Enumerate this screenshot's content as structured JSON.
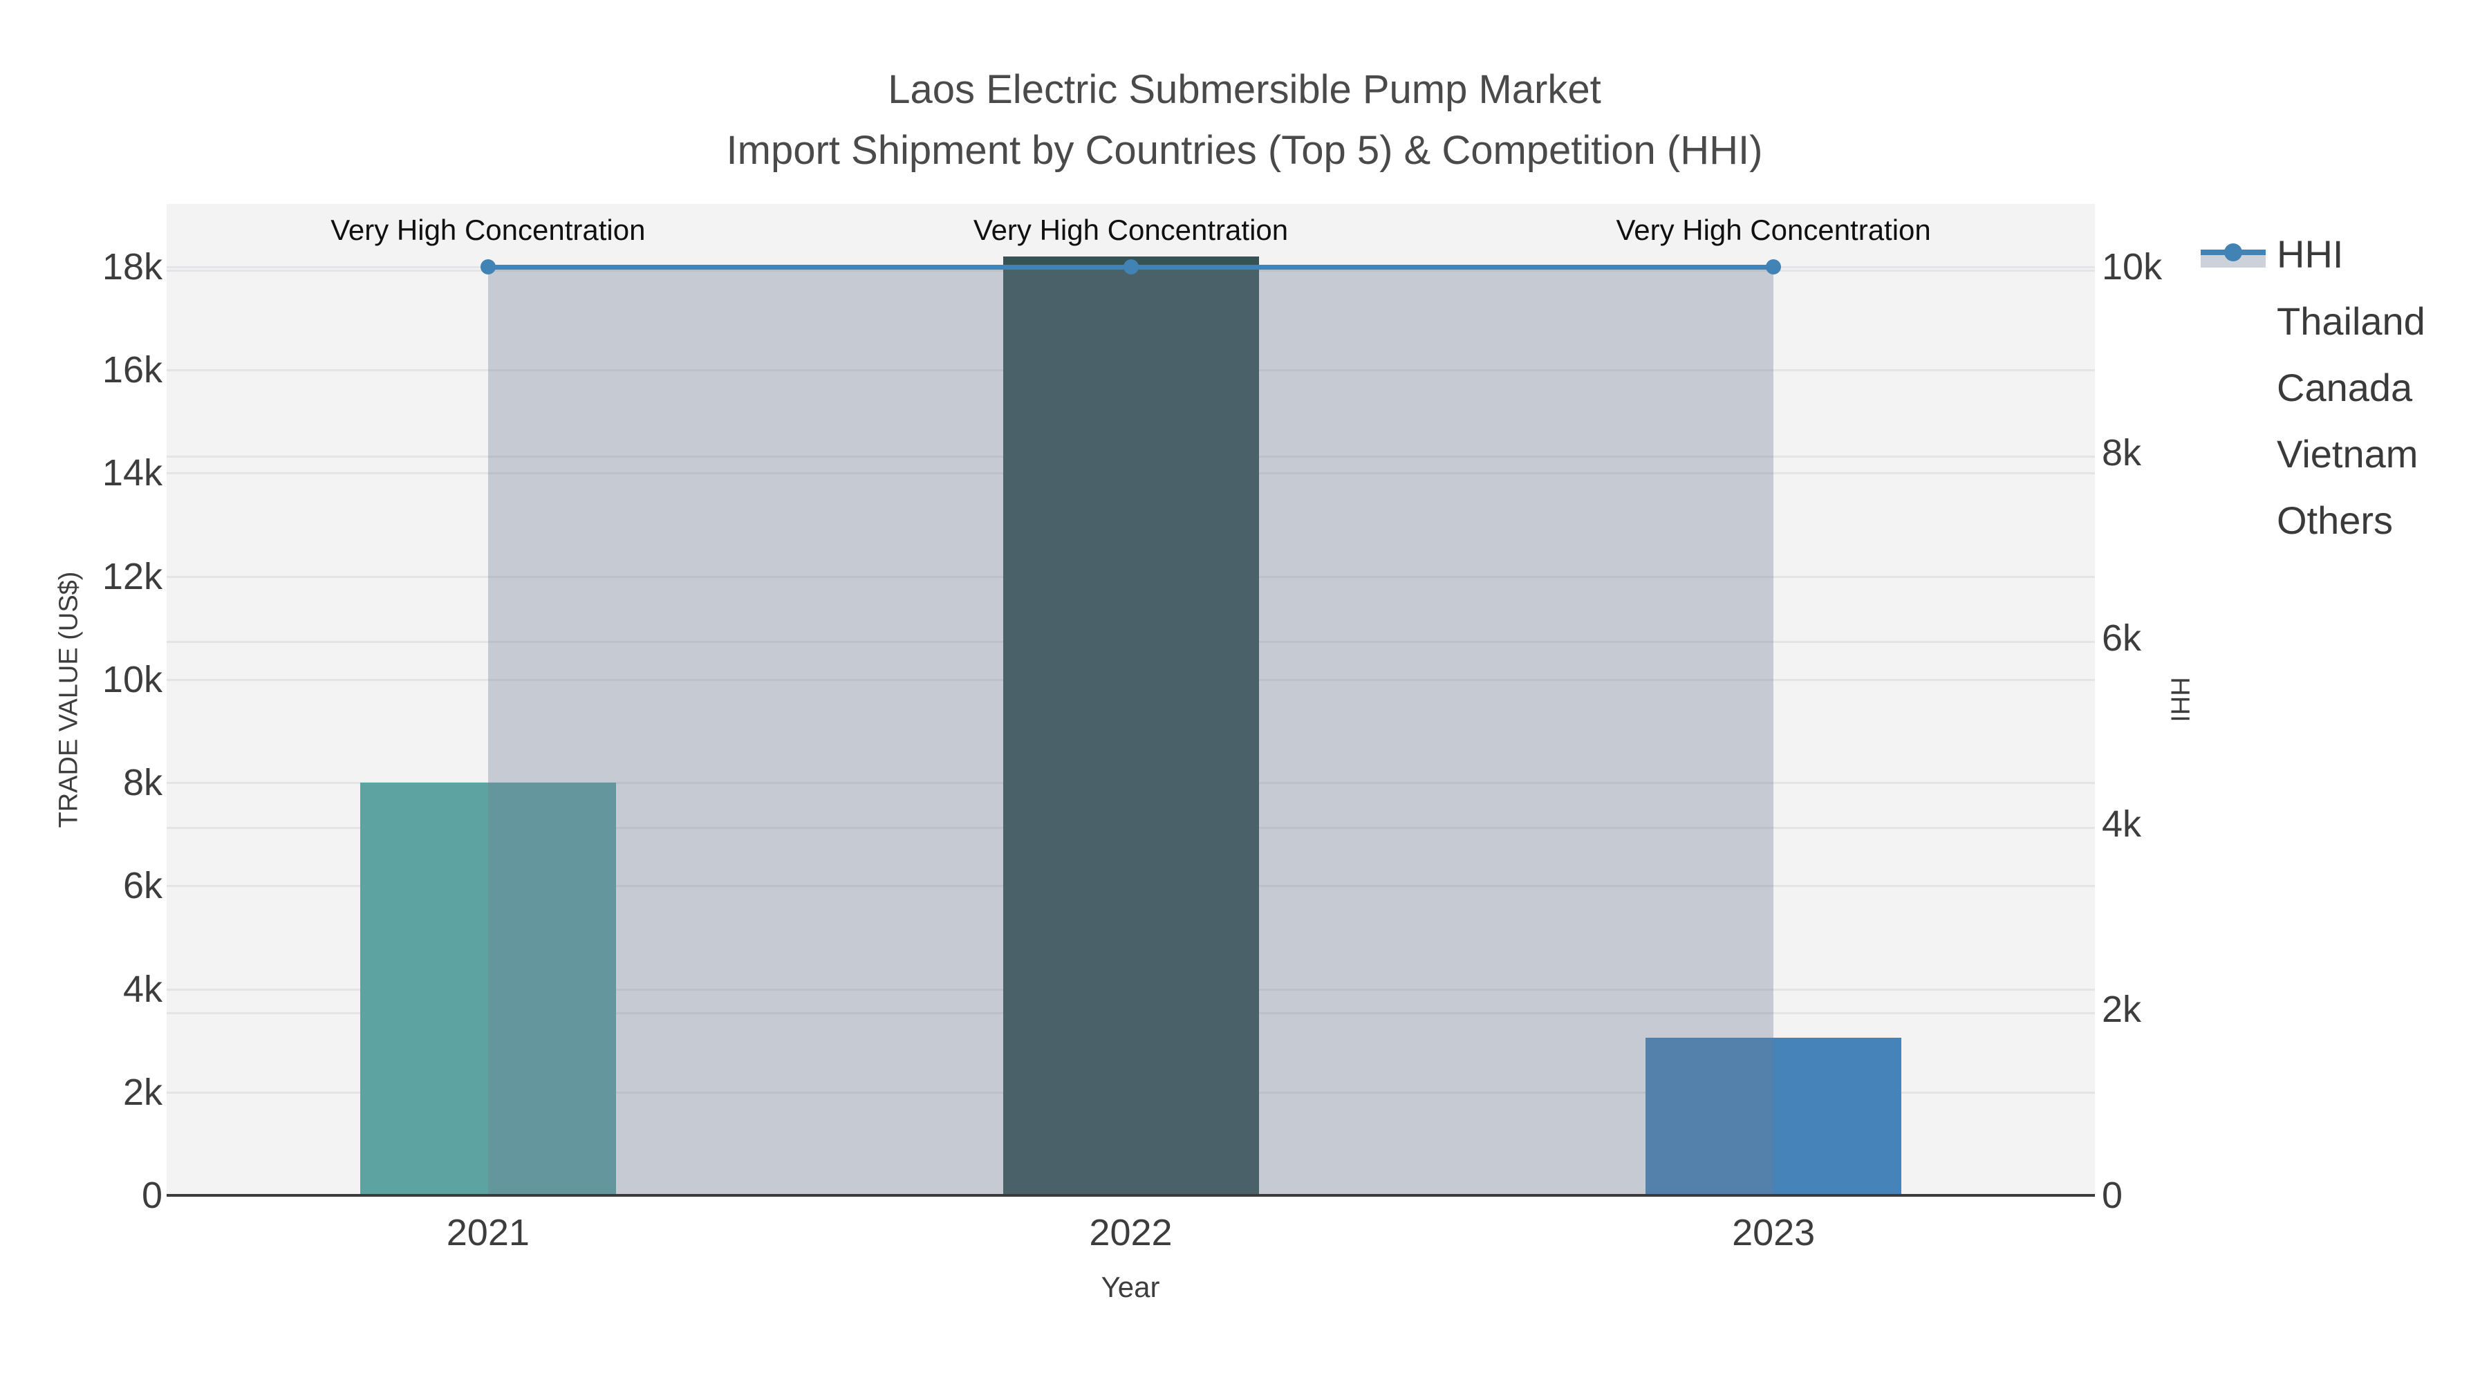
{
  "title": {
    "line1": "Laos Electric Submersible Pump Market",
    "line2": "Import Shipment by Countries (Top 5) & Competition (HHI)"
  },
  "axes": {
    "left": {
      "title": "TRADE VALUE (US$)",
      "ticks": [
        "0",
        "2k",
        "4k",
        "6k",
        "8k",
        "10k",
        "12k",
        "14k",
        "16k",
        "18k"
      ],
      "tick_values": [
        0,
        2000,
        4000,
        6000,
        8000,
        10000,
        12000,
        14000,
        16000,
        18000
      ],
      "max": 19220
    },
    "right": {
      "title": "HHI",
      "ticks": [
        "0",
        "2k",
        "4k",
        "6k",
        "8k",
        "10k"
      ],
      "tick_values": [
        0,
        2000,
        4000,
        6000,
        8000,
        10000
      ],
      "max": 10680
    },
    "x": {
      "title": "Year",
      "categories": [
        "2021",
        "2022",
        "2023"
      ]
    }
  },
  "legend": [
    {
      "label": "HHI",
      "type": "line",
      "color": "#4183b5",
      "fill": "#cdd2da"
    },
    {
      "label": "Thailand",
      "type": "swatch",
      "color": "#4583b8"
    },
    {
      "label": "Canada",
      "type": "swatch",
      "color": "#5da3a2"
    },
    {
      "label": "Vietnam",
      "type": "swatch",
      "color": "#365254"
    },
    {
      "label": "Others",
      "type": "swatch",
      "color": "#b5b5b8"
    }
  ],
  "colors": {
    "plot_bg": "#f3f3f4",
    "grid": "#e4e4e6",
    "axis_line": "#3b3b3b",
    "tick_text": "#3d3d3d",
    "title_text": "#4a4a4a",
    "annotation_text": "#101010",
    "hhi_line": "#4183b5",
    "hhi_area_fill": "rgba(112,126,148,0.35)"
  },
  "chart_data": {
    "type": "bar",
    "title": "Laos Electric Submersible Pump Market — Import Shipment by Countries (Top 5) & Competition (HHI)",
    "categories": [
      "2021",
      "2022",
      "2023"
    ],
    "series": [
      {
        "name": "Thailand",
        "values": [
          0,
          0,
          3050
        ],
        "color": "#4583b8"
      },
      {
        "name": "Canada",
        "values": [
          8000,
          0,
          0
        ],
        "color": "#5da3a2"
      },
      {
        "name": "Vietnam",
        "values": [
          0,
          18200,
          0
        ],
        "color": "#365254"
      },
      {
        "name": "Others",
        "values": [
          0,
          0,
          0
        ],
        "color": "#b5b5b8"
      }
    ],
    "line_series": {
      "name": "HHI",
      "axis": "right",
      "values": [
        10000,
        10000,
        10000
      ],
      "color": "#4183b5",
      "area_fill": "rgba(112,126,148,0.35)",
      "markers": true
    },
    "annotations": [
      {
        "text": "Very High Concentration",
        "x": "2021"
      },
      {
        "text": "Very High Concentration",
        "x": "2022"
      },
      {
        "text": "Very High Concentration",
        "x": "2023"
      }
    ],
    "xlabel": "Year",
    "ylabel_left": "TRADE VALUE (US$)",
    "ylabel_right": "HHI",
    "ylim_left": [
      0,
      19220
    ],
    "ylim_right": [
      0,
      10680
    ],
    "grid": "horizontal",
    "legend_position": "right"
  }
}
